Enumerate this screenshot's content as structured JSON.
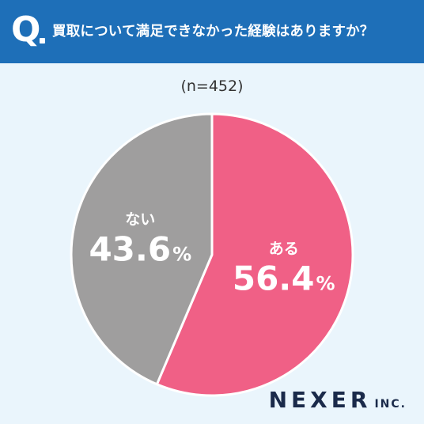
{
  "header": {
    "q_letter": "Q",
    "question": "買取について満足できなかった経験はありますか？",
    "background": "#1e6fb8"
  },
  "sample_size": "(n=452)",
  "chart_data": {
    "type": "pie",
    "title": "買取について満足できなかった経験はありますか？",
    "start_angle_deg": 0,
    "direction": "clockwise",
    "slices": [
      {
        "label": "ある",
        "value": 56.4,
        "display": "56.4",
        "unit": "%",
        "color": "#f06086"
      },
      {
        "label": "ない",
        "value": 43.6,
        "display": "43.6",
        "unit": "%",
        "color": "#9f9e9e"
      }
    ]
  },
  "logo": {
    "main": "NEXER",
    "suffix": "INC."
  }
}
